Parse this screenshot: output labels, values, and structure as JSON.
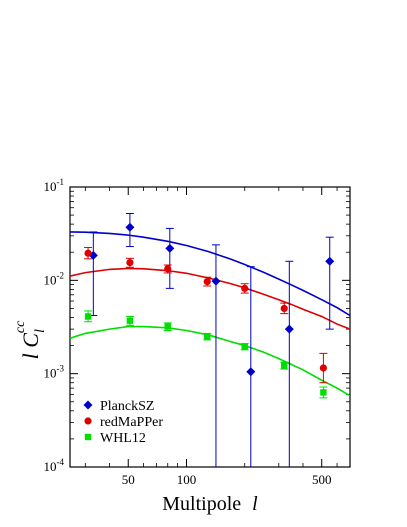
{
  "chart_data": {
    "type": "scatter",
    "xlabel": "Multipole",
    "xlabel_symbol": "l",
    "ylabel_symbol": "l C",
    "ylabel_sub": "l",
    "ylabel_sup": "cc",
    "xscale": "log",
    "yscale": "log",
    "xlim": [
      25,
      700
    ],
    "ylim": [
      0.0001,
      0.1
    ],
    "x_tick_labels": [
      "50",
      "100",
      "500"
    ],
    "y_tick_labels": [
      {
        "base": "10",
        "exp": "-4"
      },
      {
        "base": "10",
        "exp": "-3"
      },
      {
        "base": "10",
        "exp": "-2"
      },
      {
        "base": "10",
        "exp": "-1"
      }
    ],
    "legend_position": "bottom-left",
    "series": [
      {
        "name": "PlanckSZ",
        "color": "#0000cc",
        "marker": "diamond",
        "points": [
          {
            "x": 33,
            "y": 0.0185,
            "lo": 0.0042,
            "hi": 0.033
          },
          {
            "x": 51,
            "y": 0.037,
            "lo": 0.023,
            "hi": 0.052
          },
          {
            "x": 82,
            "y": 0.022,
            "lo": 0.0082,
            "hi": 0.036
          },
          {
            "x": 142,
            "y": 0.0098,
            "lo": 0.0001,
            "hi": 0.024
          },
          {
            "x": 215,
            "y": 0.00105,
            "lo": 0.0001,
            "hi": 0.014
          },
          {
            "x": 340,
            "y": 0.003,
            "lo": 0.0001,
            "hi": 0.016
          },
          {
            "x": 550,
            "y": 0.016,
            "lo": 0.003,
            "hi": 0.029
          }
        ],
        "curve": {
          "x": [
            25,
            30,
            40,
            50,
            60,
            80,
            100,
            130,
            170,
            200,
            250,
            300,
            350,
            400,
            500,
            600,
            700
          ],
          "y": [
            0.033,
            0.0328,
            0.0318,
            0.0305,
            0.029,
            0.0262,
            0.0236,
            0.0203,
            0.0168,
            0.0148,
            0.0122,
            0.0103,
            0.0089,
            0.0078,
            0.0062,
            0.0051,
            0.0042
          ]
        }
      },
      {
        "name": "redMaPPer",
        "color": "#dd0000",
        "marker": "circle",
        "points": [
          {
            "x": 31,
            "y": 0.0195,
            "lo": 0.017,
            "hi": 0.0225
          },
          {
            "x": 51,
            "y": 0.0155,
            "lo": 0.0138,
            "hi": 0.0172
          },
          {
            "x": 80,
            "y": 0.0133,
            "lo": 0.012,
            "hi": 0.0146
          },
          {
            "x": 128,
            "y": 0.0097,
            "lo": 0.0087,
            "hi": 0.0108
          },
          {
            "x": 200,
            "y": 0.0082,
            "lo": 0.0073,
            "hi": 0.0092
          },
          {
            "x": 320,
            "y": 0.005,
            "lo": 0.0044,
            "hi": 0.0057
          },
          {
            "x": 510,
            "y": 0.00115,
            "lo": 0.0008,
            "hi": 0.00165
          }
        ],
        "curve": {
          "x": [
            25,
            30,
            40,
            50,
            60,
            80,
            100,
            130,
            170,
            200,
            250,
            300,
            350,
            400,
            500,
            600,
            700
          ],
          "y": [
            0.0111,
            0.0121,
            0.0131,
            0.0134,
            0.0133,
            0.0127,
            0.0119,
            0.0106,
            0.0092,
            0.0083,
            0.0071,
            0.0062,
            0.0055,
            0.0049,
            0.0041,
            0.0034,
            0.003
          ]
        }
      },
      {
        "name": "WHL12",
        "color": "#00dd00",
        "marker": "square",
        "points": [
          {
            "x": 31,
            "y": 0.0041,
            "lo": 0.0036,
            "hi": 0.0047
          },
          {
            "x": 51,
            "y": 0.0037,
            "lo": 0.0033,
            "hi": 0.0041
          },
          {
            "x": 80,
            "y": 0.0032,
            "lo": 0.0029,
            "hi": 0.0035
          },
          {
            "x": 128,
            "y": 0.0025,
            "lo": 0.0023,
            "hi": 0.0027
          },
          {
            "x": 200,
            "y": 0.00195,
            "lo": 0.0018,
            "hi": 0.0021
          },
          {
            "x": 320,
            "y": 0.00122,
            "lo": 0.00112,
            "hi": 0.00133
          },
          {
            "x": 510,
            "y": 0.00063,
            "lo": 0.00055,
            "hi": 0.00072
          }
        ],
        "curve": {
          "x": [
            25,
            30,
            40,
            50,
            60,
            80,
            100,
            130,
            170,
            200,
            250,
            300,
            350,
            400,
            500,
            600,
            700
          ],
          "y": [
            0.0024,
            0.0027,
            0.003,
            0.0032,
            0.0032,
            0.0031,
            0.0029,
            0.0026,
            0.0022,
            0.002,
            0.0017,
            0.00145,
            0.00125,
            0.0011,
            0.00085,
            0.0007,
            0.00058
          ]
        }
      }
    ]
  }
}
